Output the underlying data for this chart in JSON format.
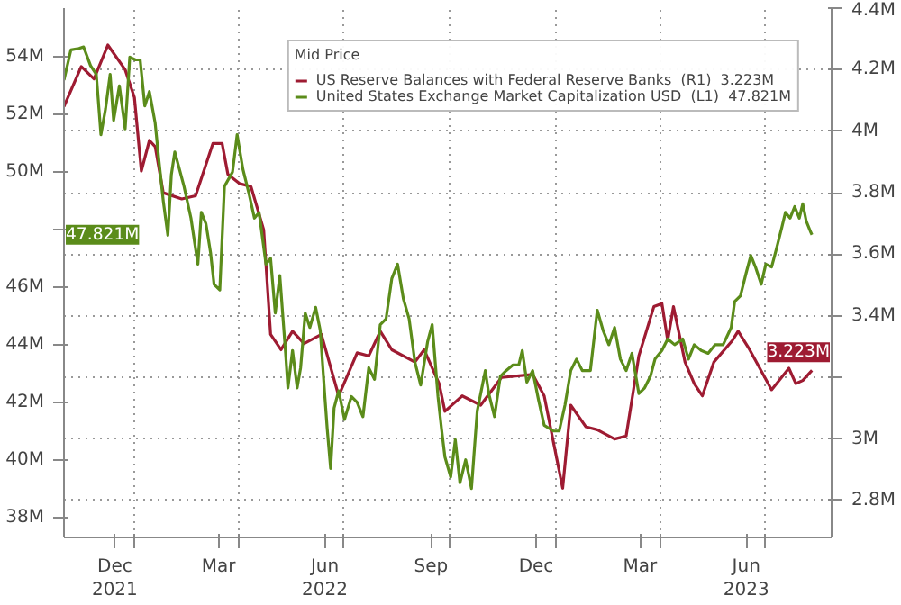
{
  "chart_data": {
    "type": "line",
    "legend_title": "Mid Price",
    "legend": "top right",
    "grid": true,
    "line_style": "solid",
    "xlim": [
      "2021-11-01",
      "2023-08-28"
    ],
    "xticks": [
      {
        "value": "2021-12-15",
        "label": "Dec\n2021"
      },
      {
        "value": "2022-03-15",
        "label": "Mar"
      },
      {
        "value": "2022-06-15",
        "label": "Jun\n2022"
      },
      {
        "value": "2022-09-15",
        "label": "Sep"
      },
      {
        "value": "2022-12-15",
        "label": "Dec"
      },
      {
        "value": "2023-03-15",
        "label": "Mar"
      },
      {
        "value": "2023-06-15",
        "label": "Jun\n2023"
      },
      {
        "value": "2022-01-01",
        "label": null
      },
      {
        "value": "2022-04-01",
        "label": null
      },
      {
        "value": "2022-07-01",
        "label": null
      },
      {
        "value": "2022-10-01",
        "label": null
      },
      {
        "value": "2023-01-01",
        "label": null
      },
      {
        "value": "2023-04-01",
        "label": null
      },
      {
        "value": "2023-07-01",
        "label": null
      }
    ],
    "ylim": [
      37.3,
      55.7
    ],
    "yticks": [
      {
        "value": 38,
        "label": "38M"
      },
      {
        "value": 40,
        "label": "40M"
      },
      {
        "value": 42,
        "label": "42M"
      },
      {
        "value": 44,
        "label": "44M"
      },
      {
        "value": 46,
        "label": "46M"
      },
      {
        "value": 48,
        "label": null
      },
      {
        "value": 50,
        "label": "50M"
      },
      {
        "value": 52,
        "label": "52M"
      },
      {
        "value": 54,
        "label": "54M"
      }
    ],
    "y2lim": [
      2.68,
      4.4
    ],
    "y2ticks": [
      {
        "value": 2.8,
        "label": "2.8M"
      },
      {
        "value": 3.0,
        "label": "3M"
      },
      {
        "value": 3.2,
        "label": null
      },
      {
        "value": 3.4,
        "label": "3.4M"
      },
      {
        "value": 3.6,
        "label": "3.6M"
      },
      {
        "value": 3.8,
        "label": "3.8M"
      },
      {
        "value": 4.0,
        "label": "4M"
      },
      {
        "value": 4.2,
        "label": "4.2M"
      },
      {
        "value": 4.4,
        "label": "4.4M"
      }
    ],
    "annotations": [
      "47.821M",
      "3.223M"
    ],
    "series": [
      {
        "name": "US Reserve Balances with Federal Reserve Banks  (R1)  3.223M",
        "color": "#9e1b32",
        "axis": "y2",
        "x": [
          "2021-11-01",
          "2021-11-16",
          "2021-11-27",
          "2021-12-09",
          "2021-12-24",
          "2022-01-01",
          "2022-01-07",
          "2022-01-14",
          "2022-01-19",
          "2022-01-26",
          "2022-02-11",
          "2022-02-23",
          "2022-03-10",
          "2022-03-18",
          "2022-03-23",
          "2022-04-02",
          "2022-04-12",
          "2022-04-23",
          "2022-04-29",
          "2022-05-08",
          "2022-05-18",
          "2022-05-28",
          "2022-06-12",
          "2022-06-27",
          "2022-07-13",
          "2022-07-23",
          "2022-08-02",
          "2022-08-12",
          "2022-09-01",
          "2022-09-09",
          "2022-09-22",
          "2022-09-27",
          "2022-10-12",
          "2022-10-28",
          "2022-11-15",
          "2022-12-12",
          "2022-12-22",
          "2023-01-07",
          "2023-01-14",
          "2023-01-27",
          "2023-02-06",
          "2023-02-21",
          "2023-03-03",
          "2023-03-14",
          "2023-03-27",
          "2023-04-03",
          "2023-04-08",
          "2023-04-13",
          "2023-04-23",
          "2023-05-01",
          "2023-05-08",
          "2023-05-18",
          "2023-06-03",
          "2023-06-08",
          "2023-06-18",
          "2023-07-07",
          "2023-07-22",
          "2023-07-28",
          "2023-08-03",
          "2023-08-11"
        ],
        "values": [
          4.08,
          4.21,
          4.17,
          4.28,
          4.2,
          4.11,
          3.87,
          3.97,
          3.95,
          3.8,
          3.78,
          3.79,
          3.96,
          3.96,
          3.86,
          3.83,
          3.82,
          3.68,
          3.34,
          3.29,
          3.35,
          3.31,
          3.34,
          3.14,
          3.28,
          3.27,
          3.35,
          3.29,
          3.25,
          3.29,
          3.18,
          3.09,
          3.14,
          3.11,
          3.2,
          3.21,
          3.14,
          2.84,
          3.11,
          3.04,
          3.03,
          3.0,
          3.01,
          3.27,
          3.43,
          3.44,
          3.32,
          3.43,
          3.25,
          3.18,
          3.14,
          3.25,
          3.32,
          3.35,
          3.29,
          3.16,
          3.23,
          3.18,
          3.19,
          3.223
        ]
      },
      {
        "name": "United States Exchange Market Capitalization USD  (L1)  47.821M",
        "color": "#5b8c1a",
        "axis": "y",
        "x": [
          "2021-11-01",
          "2021-11-07",
          "2021-11-14",
          "2021-11-18",
          "2021-11-24",
          "2021-11-29",
          "2021-12-03",
          "2021-12-07",
          "2021-12-11",
          "2021-12-14",
          "2021-12-19",
          "2021-12-24",
          "2021-12-28",
          "2022-01-02",
          "2022-01-06",
          "2022-01-10",
          "2022-01-14",
          "2022-01-19",
          "2022-01-22",
          "2022-01-26",
          "2022-01-30",
          "2022-02-02",
          "2022-02-05",
          "2022-02-09",
          "2022-02-13",
          "2022-02-19",
          "2022-02-25",
          "2022-02-28",
          "2022-03-04",
          "2022-03-08",
          "2022-03-11",
          "2022-03-16",
          "2022-03-20",
          "2022-03-27",
          "2022-03-31",
          "2022-04-05",
          "2022-04-10",
          "2022-04-15",
          "2022-04-19",
          "2022-04-25",
          "2022-04-29",
          "2022-05-03",
          "2022-05-07",
          "2022-05-12",
          "2022-05-14",
          "2022-05-18",
          "2022-05-22",
          "2022-05-25",
          "2022-05-29",
          "2022-06-02",
          "2022-06-07",
          "2022-06-11",
          "2022-06-15",
          "2022-06-17",
          "2022-06-20",
          "2022-06-23",
          "2022-06-27",
          "2022-07-02",
          "2022-07-08",
          "2022-07-13",
          "2022-07-18",
          "2022-07-23",
          "2022-07-28",
          "2022-08-02",
          "2022-08-07",
          "2022-08-12",
          "2022-08-17",
          "2022-08-22",
          "2022-08-27",
          "2022-09-01",
          "2022-09-06",
          "2022-09-12",
          "2022-09-16",
          "2022-09-21",
          "2022-09-24",
          "2022-09-27",
          "2022-10-02",
          "2022-10-06",
          "2022-10-10",
          "2022-10-15",
          "2022-10-20",
          "2022-10-25",
          "2022-11-01",
          "2022-11-04",
          "2022-11-09",
          "2022-11-14",
          "2022-11-19",
          "2022-11-25",
          "2022-11-30",
          "2022-12-03",
          "2022-12-07",
          "2022-12-12",
          "2022-12-17",
          "2022-12-22",
          "2022-12-30",
          "2023-01-04",
          "2023-01-09",
          "2023-01-14",
          "2023-01-19",
          "2023-01-24",
          "2023-01-31",
          "2023-02-06",
          "2023-02-11",
          "2023-02-16",
          "2023-02-21",
          "2023-02-26",
          "2023-03-03",
          "2023-03-08",
          "2023-03-14",
          "2023-03-19",
          "2023-03-24",
          "2023-03-28",
          "2023-04-03",
          "2023-04-08",
          "2023-04-14",
          "2023-04-21",
          "2023-04-26",
          "2023-05-01",
          "2023-05-07",
          "2023-05-13",
          "2023-05-19",
          "2023-05-26",
          "2023-06-02",
          "2023-06-05",
          "2023-06-10",
          "2023-06-15",
          "2023-06-19",
          "2023-06-23",
          "2023-06-28",
          "2023-07-02",
          "2023-07-07",
          "2023-07-11",
          "2023-07-16",
          "2023-07-19",
          "2023-07-23",
          "2023-07-27",
          "2023-07-31",
          "2023-08-03",
          "2023-08-06",
          "2023-08-10",
          "2023-08-11"
        ],
        "values": [
          53.2,
          54.25,
          54.3,
          54.35,
          53.7,
          53.4,
          51.3,
          52.2,
          53.4,
          51.8,
          53.0,
          51.5,
          54.0,
          53.9,
          53.9,
          52.3,
          52.8,
          51.7,
          50.5,
          49.0,
          47.8,
          49.9,
          50.7,
          50.1,
          49.5,
          48.4,
          46.8,
          48.6,
          48.2,
          47.2,
          46.1,
          45.9,
          49.5,
          50.0,
          51.3,
          50.1,
          49.3,
          48.4,
          48.6,
          46.8,
          47.0,
          45.1,
          46.4,
          43.7,
          42.5,
          43.8,
          42.5,
          43.2,
          45.1,
          44.6,
          45.3,
          44.5,
          42.2,
          41.1,
          39.7,
          41.8,
          42.4,
          41.4,
          42.2,
          42.0,
          41.5,
          43.2,
          42.8,
          44.7,
          44.9,
          46.3,
          46.8,
          45.6,
          44.9,
          43.4,
          42.6,
          44.1,
          44.7,
          42.2,
          41.1,
          40.1,
          39.4,
          40.7,
          39.2,
          40.0,
          39.0,
          41.7,
          43.1,
          42.3,
          41.5,
          42.9,
          43.1,
          43.3,
          43.3,
          43.8,
          42.7,
          43.1,
          42.1,
          41.2,
          41.0,
          41.0,
          41.9,
          43.1,
          43.5,
          43.1,
          43.1,
          45.2,
          44.5,
          44.0,
          44.6,
          43.5,
          43.1,
          43.7,
          42.3,
          42.5,
          42.9,
          43.5,
          43.8,
          44.2,
          44.0,
          44.2,
          43.5,
          44.0,
          43.8,
          43.7,
          44.0,
          44.0,
          44.6,
          45.5,
          45.7,
          46.5,
          47.1,
          46.7,
          46.1,
          46.8,
          46.7,
          47.3,
          48.1,
          48.6,
          48.4,
          48.8,
          48.4,
          48.9,
          48.3,
          47.9,
          47.821
        ]
      }
    ]
  }
}
